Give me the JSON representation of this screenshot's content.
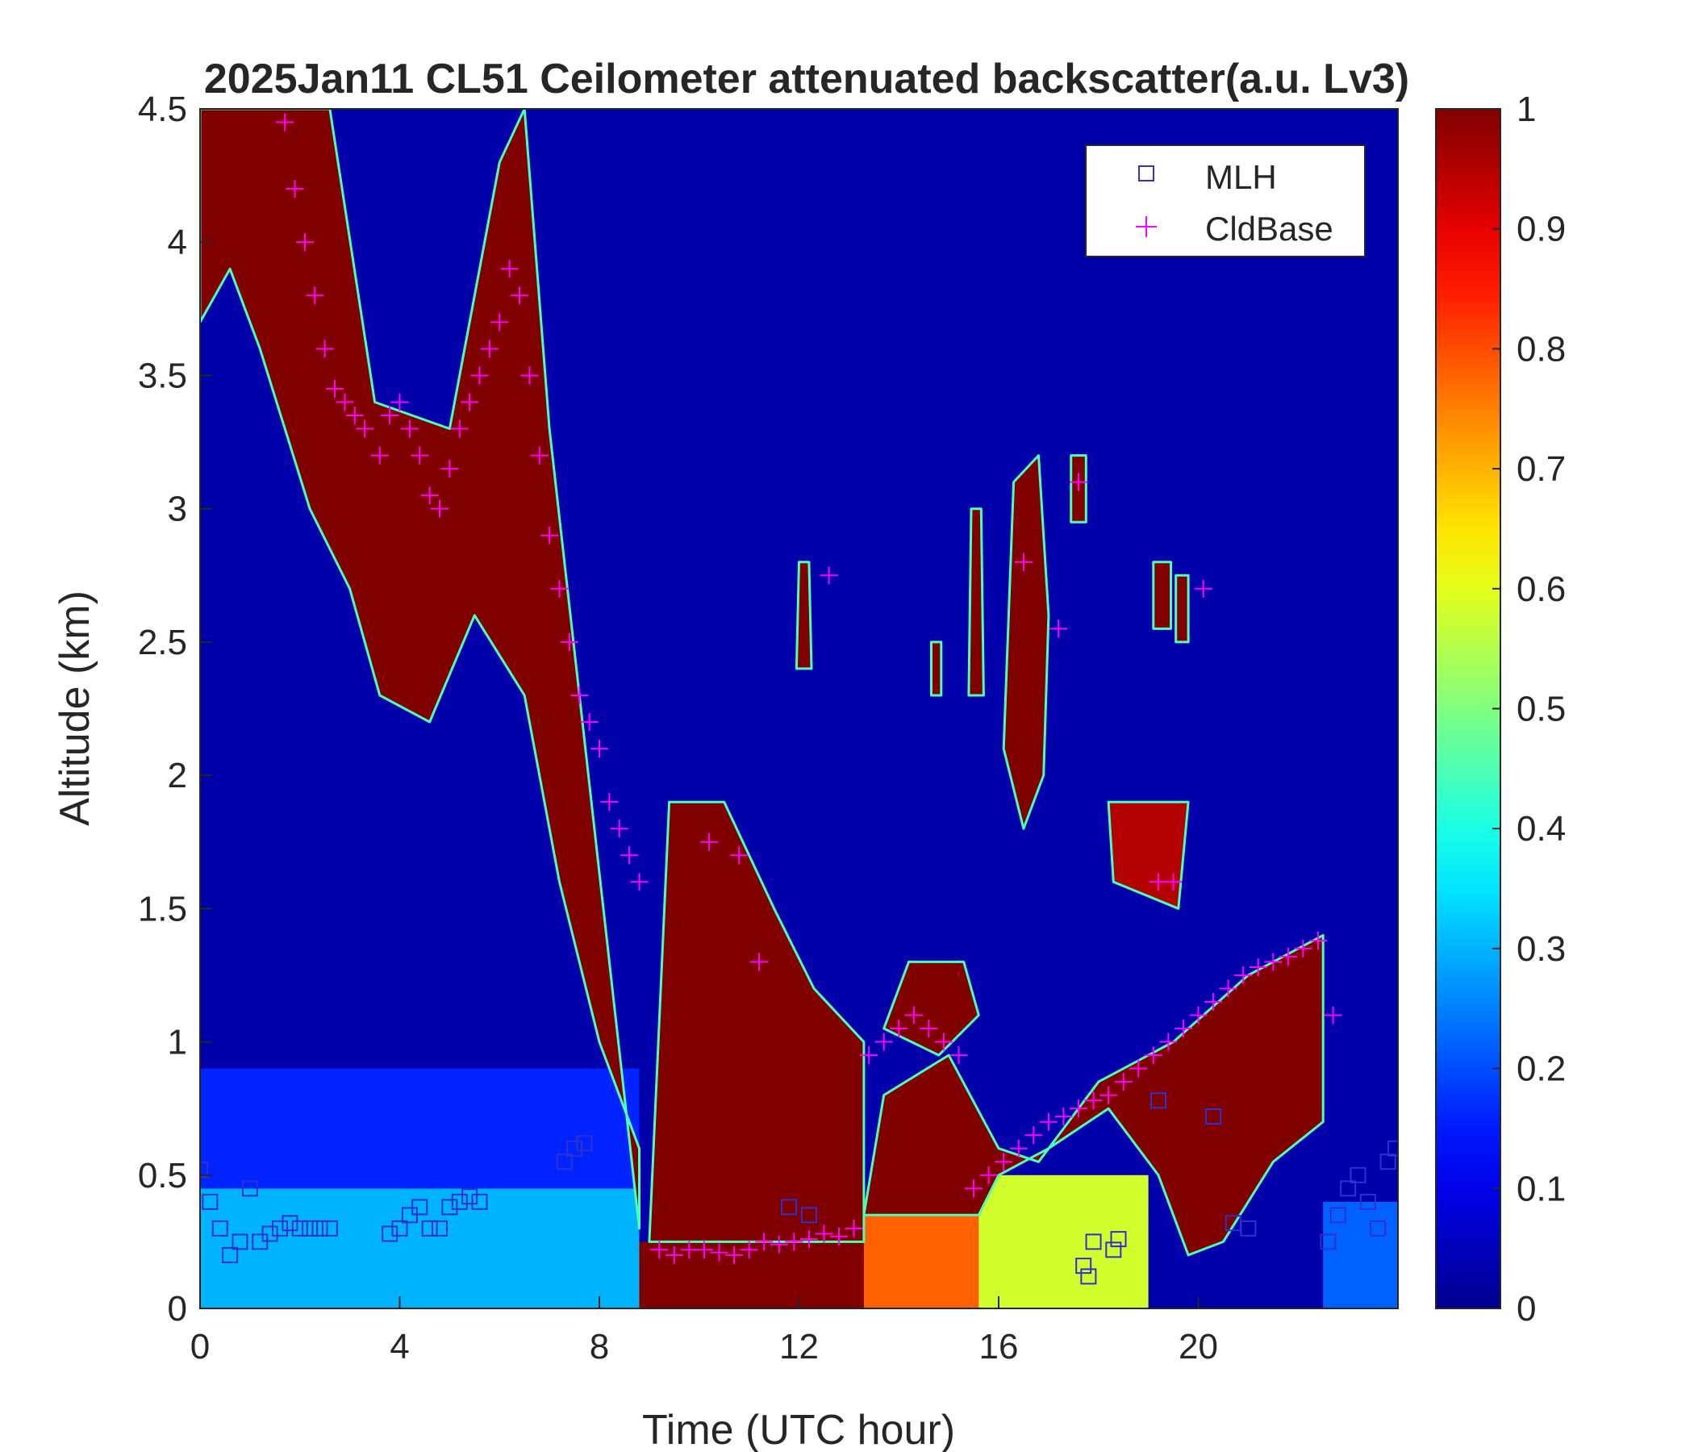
{
  "chart_data": {
    "type": "heatmap",
    "title": "2025Jan11 CL51 Ceilometer attenuated backscatter(a.u. Lv3)",
    "xlabel": "Time (UTC hour)",
    "ylabel": "Altitude (km)",
    "xlim": [
      0,
      24
    ],
    "ylim": [
      0,
      4.5
    ],
    "xticks": [
      0,
      4,
      8,
      12,
      16,
      20
    ],
    "yticks": [
      0,
      0.5,
      1,
      1.5,
      2,
      2.5,
      3,
      3.5,
      4,
      4.5
    ],
    "colorbar": {
      "range": [
        0,
        1
      ],
      "ticks": [
        0,
        0.1,
        0.2,
        0.3,
        0.4,
        0.5,
        0.6,
        0.7,
        0.8,
        0.9,
        1
      ],
      "colormap": "jet",
      "colors": [
        "#00008f",
        "#0000ff",
        "#00ffff",
        "#ffff00",
        "#ff0000",
        "#800000"
      ]
    },
    "legend": {
      "placement": "top-right",
      "entries": [
        {
          "label": "MLH",
          "marker": "square",
          "color": "#3030d0"
        },
        {
          "label": "CldBase",
          "marker": "plus",
          "color": "#ff00ff"
        }
      ]
    },
    "background_regions": [
      {
        "t0": 0.0,
        "t1": 8.8,
        "z0": 0.0,
        "z1": 0.45,
        "value": 0.3
      },
      {
        "t0": 0.0,
        "t1": 8.8,
        "z0": 0.45,
        "z1": 0.9,
        "value": 0.16
      },
      {
        "t0": 8.8,
        "t1": 13.3,
        "z0": 0.0,
        "z1": 0.25,
        "value": 1.0
      },
      {
        "t0": 13.3,
        "t1": 15.6,
        "z0": 0.0,
        "z1": 0.35,
        "value": 0.78
      },
      {
        "t0": 15.6,
        "t1": 19.0,
        "z0": 0.0,
        "z1": 0.5,
        "value": 0.58
      },
      {
        "t0": 22.5,
        "t1": 24.0,
        "z0": 0.0,
        "z1": 0.4,
        "value": 0.22
      }
    ],
    "cloud_layers": [
      {
        "points": [
          [
            0.0,
            4.5
          ],
          [
            2.6,
            4.5
          ],
          [
            3.5,
            3.4
          ],
          [
            5.0,
            3.3
          ],
          [
            6.0,
            4.3
          ],
          [
            6.5,
            4.5
          ],
          [
            7.0,
            3.3
          ],
          [
            7.6,
            2.3
          ],
          [
            8.8,
            0.3
          ],
          [
            8.8,
            0.6
          ],
          [
            8.0,
            1.0
          ],
          [
            7.2,
            1.6
          ],
          [
            6.5,
            2.3
          ],
          [
            5.5,
            2.6
          ],
          [
            4.6,
            2.2
          ],
          [
            3.6,
            2.3
          ],
          [
            3.0,
            2.7
          ],
          [
            2.2,
            3.0
          ],
          [
            1.2,
            3.6
          ],
          [
            0.6,
            3.9
          ],
          [
            0.0,
            3.7
          ]
        ],
        "value": 1.0
      },
      {
        "points": [
          [
            9.0,
            0.25
          ],
          [
            9.4,
            1.9
          ],
          [
            10.5,
            1.9
          ],
          [
            11.5,
            1.5
          ],
          [
            12.3,
            1.2
          ],
          [
            13.3,
            1.0
          ],
          [
            13.3,
            0.25
          ]
        ],
        "value": 1.0
      },
      {
        "points": [
          [
            13.3,
            0.35
          ],
          [
            13.7,
            0.8
          ],
          [
            15.0,
            0.95
          ],
          [
            16.0,
            0.6
          ],
          [
            16.8,
            0.55
          ],
          [
            18.0,
            0.85
          ],
          [
            19.5,
            1.0
          ],
          [
            21.0,
            1.25
          ],
          [
            22.5,
            1.4
          ],
          [
            22.5,
            0.7
          ],
          [
            21.5,
            0.55
          ],
          [
            20.5,
            0.25
          ],
          [
            19.8,
            0.2
          ],
          [
            19.2,
            0.5
          ],
          [
            18.2,
            0.75
          ],
          [
            17.0,
            0.6
          ],
          [
            16.0,
            0.5
          ],
          [
            15.6,
            0.35
          ]
        ],
        "value": 1.0
      },
      {
        "points": [
          [
            13.7,
            1.05
          ],
          [
            14.2,
            1.3
          ],
          [
            15.3,
            1.3
          ],
          [
            15.6,
            1.1
          ],
          [
            14.8,
            0.95
          ]
        ],
        "value": 1.0
      },
      {
        "points": [
          [
            16.1,
            2.1
          ],
          [
            16.3,
            3.1
          ],
          [
            16.8,
            3.2
          ],
          [
            17.0,
            2.6
          ],
          [
            16.9,
            2.0
          ],
          [
            16.5,
            1.8
          ]
        ],
        "value": 1.0
      },
      {
        "points": [
          [
            11.95,
            2.4
          ],
          [
            12.0,
            2.8
          ],
          [
            12.2,
            2.8
          ],
          [
            12.25,
            2.4
          ]
        ],
        "value": 1.0
      },
      {
        "points": [
          [
            14.65,
            2.3
          ],
          [
            14.65,
            2.5
          ],
          [
            14.85,
            2.5
          ],
          [
            14.85,
            2.3
          ]
        ],
        "value": 1.0
      },
      {
        "points": [
          [
            15.4,
            2.3
          ],
          [
            15.45,
            3.0
          ],
          [
            15.65,
            3.0
          ],
          [
            15.7,
            2.3
          ]
        ],
        "value": 1.0
      },
      {
        "points": [
          [
            17.45,
            2.95
          ],
          [
            17.45,
            3.2
          ],
          [
            17.75,
            3.2
          ],
          [
            17.75,
            2.95
          ]
        ],
        "value": 1.0
      },
      {
        "points": [
          [
            19.1,
            2.55
          ],
          [
            19.1,
            2.8
          ],
          [
            19.45,
            2.8
          ],
          [
            19.45,
            2.55
          ]
        ],
        "value": 1.0
      },
      {
        "points": [
          [
            19.55,
            2.5
          ],
          [
            19.55,
            2.75
          ],
          [
            19.8,
            2.75
          ],
          [
            19.8,
            2.5
          ]
        ],
        "value": 1.0
      },
      {
        "points": [
          [
            18.3,
            1.6
          ],
          [
            18.2,
            1.9
          ],
          [
            19.8,
            1.9
          ],
          [
            19.6,
            1.5
          ]
        ],
        "value": 0.95
      }
    ],
    "series": [
      {
        "name": "CldBase",
        "x": [
          1.7,
          1.9,
          2.1,
          2.3,
          2.5,
          2.7,
          2.9,
          3.1,
          3.3,
          3.6,
          3.8,
          4.0,
          4.2,
          4.4,
          4.6,
          4.8,
          5.0,
          5.2,
          5.4,
          5.6,
          5.8,
          6.0,
          6.2,
          6.4,
          6.6,
          6.8,
          7.0,
          7.2,
          7.4,
          7.6,
          7.8,
          8.0,
          8.2,
          8.4,
          8.6,
          8.8,
          9.2,
          9.5,
          9.8,
          10.1,
          10.4,
          10.7,
          11.0,
          11.3,
          11.6,
          11.9,
          12.2,
          12.5,
          12.8,
          13.1,
          13.4,
          13.7,
          14.0,
          14.3,
          14.6,
          14.9,
          15.2,
          15.5,
          15.8,
          16.1,
          16.4,
          16.7,
          17.0,
          17.3,
          17.6,
          17.9,
          18.2,
          18.5,
          18.8,
          19.1,
          19.4,
          19.7,
          20.0,
          20.3,
          20.6,
          20.9,
          21.2,
          21.5,
          21.8,
          22.1,
          22.4,
          22.7,
          16.5,
          17.2,
          17.6,
          19.2,
          19.5,
          10.2,
          10.8,
          11.2,
          12.6,
          20.1
        ],
        "y": [
          4.45,
          4.2,
          4.0,
          3.8,
          3.6,
          3.45,
          3.4,
          3.35,
          3.3,
          3.2,
          3.35,
          3.4,
          3.3,
          3.2,
          3.05,
          3.0,
          3.15,
          3.3,
          3.4,
          3.5,
          3.6,
          3.7,
          3.9,
          3.8,
          3.5,
          3.2,
          2.9,
          2.7,
          2.5,
          2.3,
          2.2,
          2.1,
          1.9,
          1.8,
          1.7,
          1.6,
          0.22,
          0.2,
          0.22,
          0.22,
          0.21,
          0.2,
          0.22,
          0.25,
          0.24,
          0.25,
          0.26,
          0.28,
          0.27,
          0.3,
          0.95,
          1.0,
          1.05,
          1.1,
          1.05,
          1.0,
          0.95,
          0.45,
          0.5,
          0.55,
          0.6,
          0.65,
          0.7,
          0.72,
          0.75,
          0.78,
          0.8,
          0.85,
          0.9,
          0.95,
          1.0,
          1.05,
          1.1,
          1.15,
          1.2,
          1.25,
          1.28,
          1.3,
          1.32,
          1.35,
          1.38,
          1.1,
          2.8,
          2.55,
          3.1,
          1.6,
          1.6,
          1.75,
          1.7,
          1.3,
          2.75,
          2.7
        ]
      },
      {
        "name": "MLH",
        "x": [
          0.0,
          0.2,
          0.4,
          0.6,
          0.8,
          1.0,
          1.2,
          1.4,
          1.6,
          1.8,
          2.0,
          2.2,
          2.4,
          2.6,
          3.8,
          4.0,
          4.2,
          4.4,
          4.6,
          4.8,
          5.0,
          5.2,
          5.4,
          5.6,
          7.3,
          7.5,
          7.7,
          11.8,
          12.2,
          17.7,
          17.8,
          17.9,
          18.3,
          18.4,
          19.2,
          20.3,
          20.7,
          21.0,
          22.6,
          22.8,
          23.0,
          23.2,
          23.4,
          23.6,
          23.8,
          23.95
        ],
        "y": [
          0.52,
          0.4,
          0.3,
          0.2,
          0.25,
          0.45,
          0.25,
          0.28,
          0.3,
          0.32,
          0.3,
          0.3,
          0.3,
          0.3,
          0.28,
          0.3,
          0.35,
          0.38,
          0.3,
          0.3,
          0.38,
          0.4,
          0.42,
          0.4,
          0.55,
          0.6,
          0.62,
          0.38,
          0.35,
          0.16,
          0.12,
          0.25,
          0.22,
          0.26,
          0.78,
          0.72,
          0.32,
          0.3,
          0.25,
          0.35,
          0.45,
          0.5,
          0.4,
          0.3,
          0.55,
          0.6
        ]
      }
    ]
  }
}
